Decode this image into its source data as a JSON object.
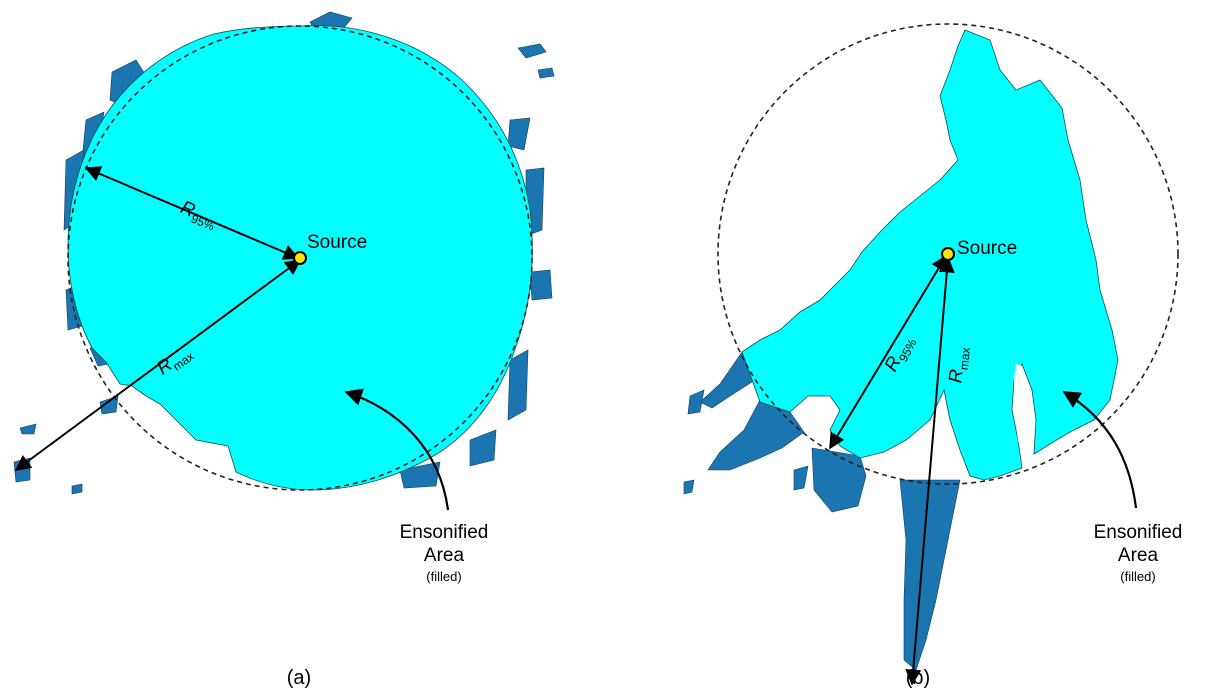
{
  "colors": {
    "ensonified": "#00FFFF",
    "beyond": "#1B75B0",
    "source": "#FFE600",
    "ink": "#000000"
  },
  "panel_a": {
    "caption": "(a)",
    "source_label": "Source",
    "r95": {
      "main": "R",
      "sub": "95%"
    },
    "rmax": {
      "main": "R",
      "sub": "max"
    },
    "area_label": {
      "line1": "Ensonified",
      "line2": "Area",
      "line3": "(filled)"
    }
  },
  "panel_b": {
    "caption": "(b)",
    "source_label": "Source",
    "r95": {
      "main": "R",
      "sub": "95%"
    },
    "rmax": {
      "main": "R",
      "sub": "max"
    },
    "area_label": {
      "line1": "Ensonified",
      "line2": "Area",
      "line3": "(filled)"
    }
  }
}
